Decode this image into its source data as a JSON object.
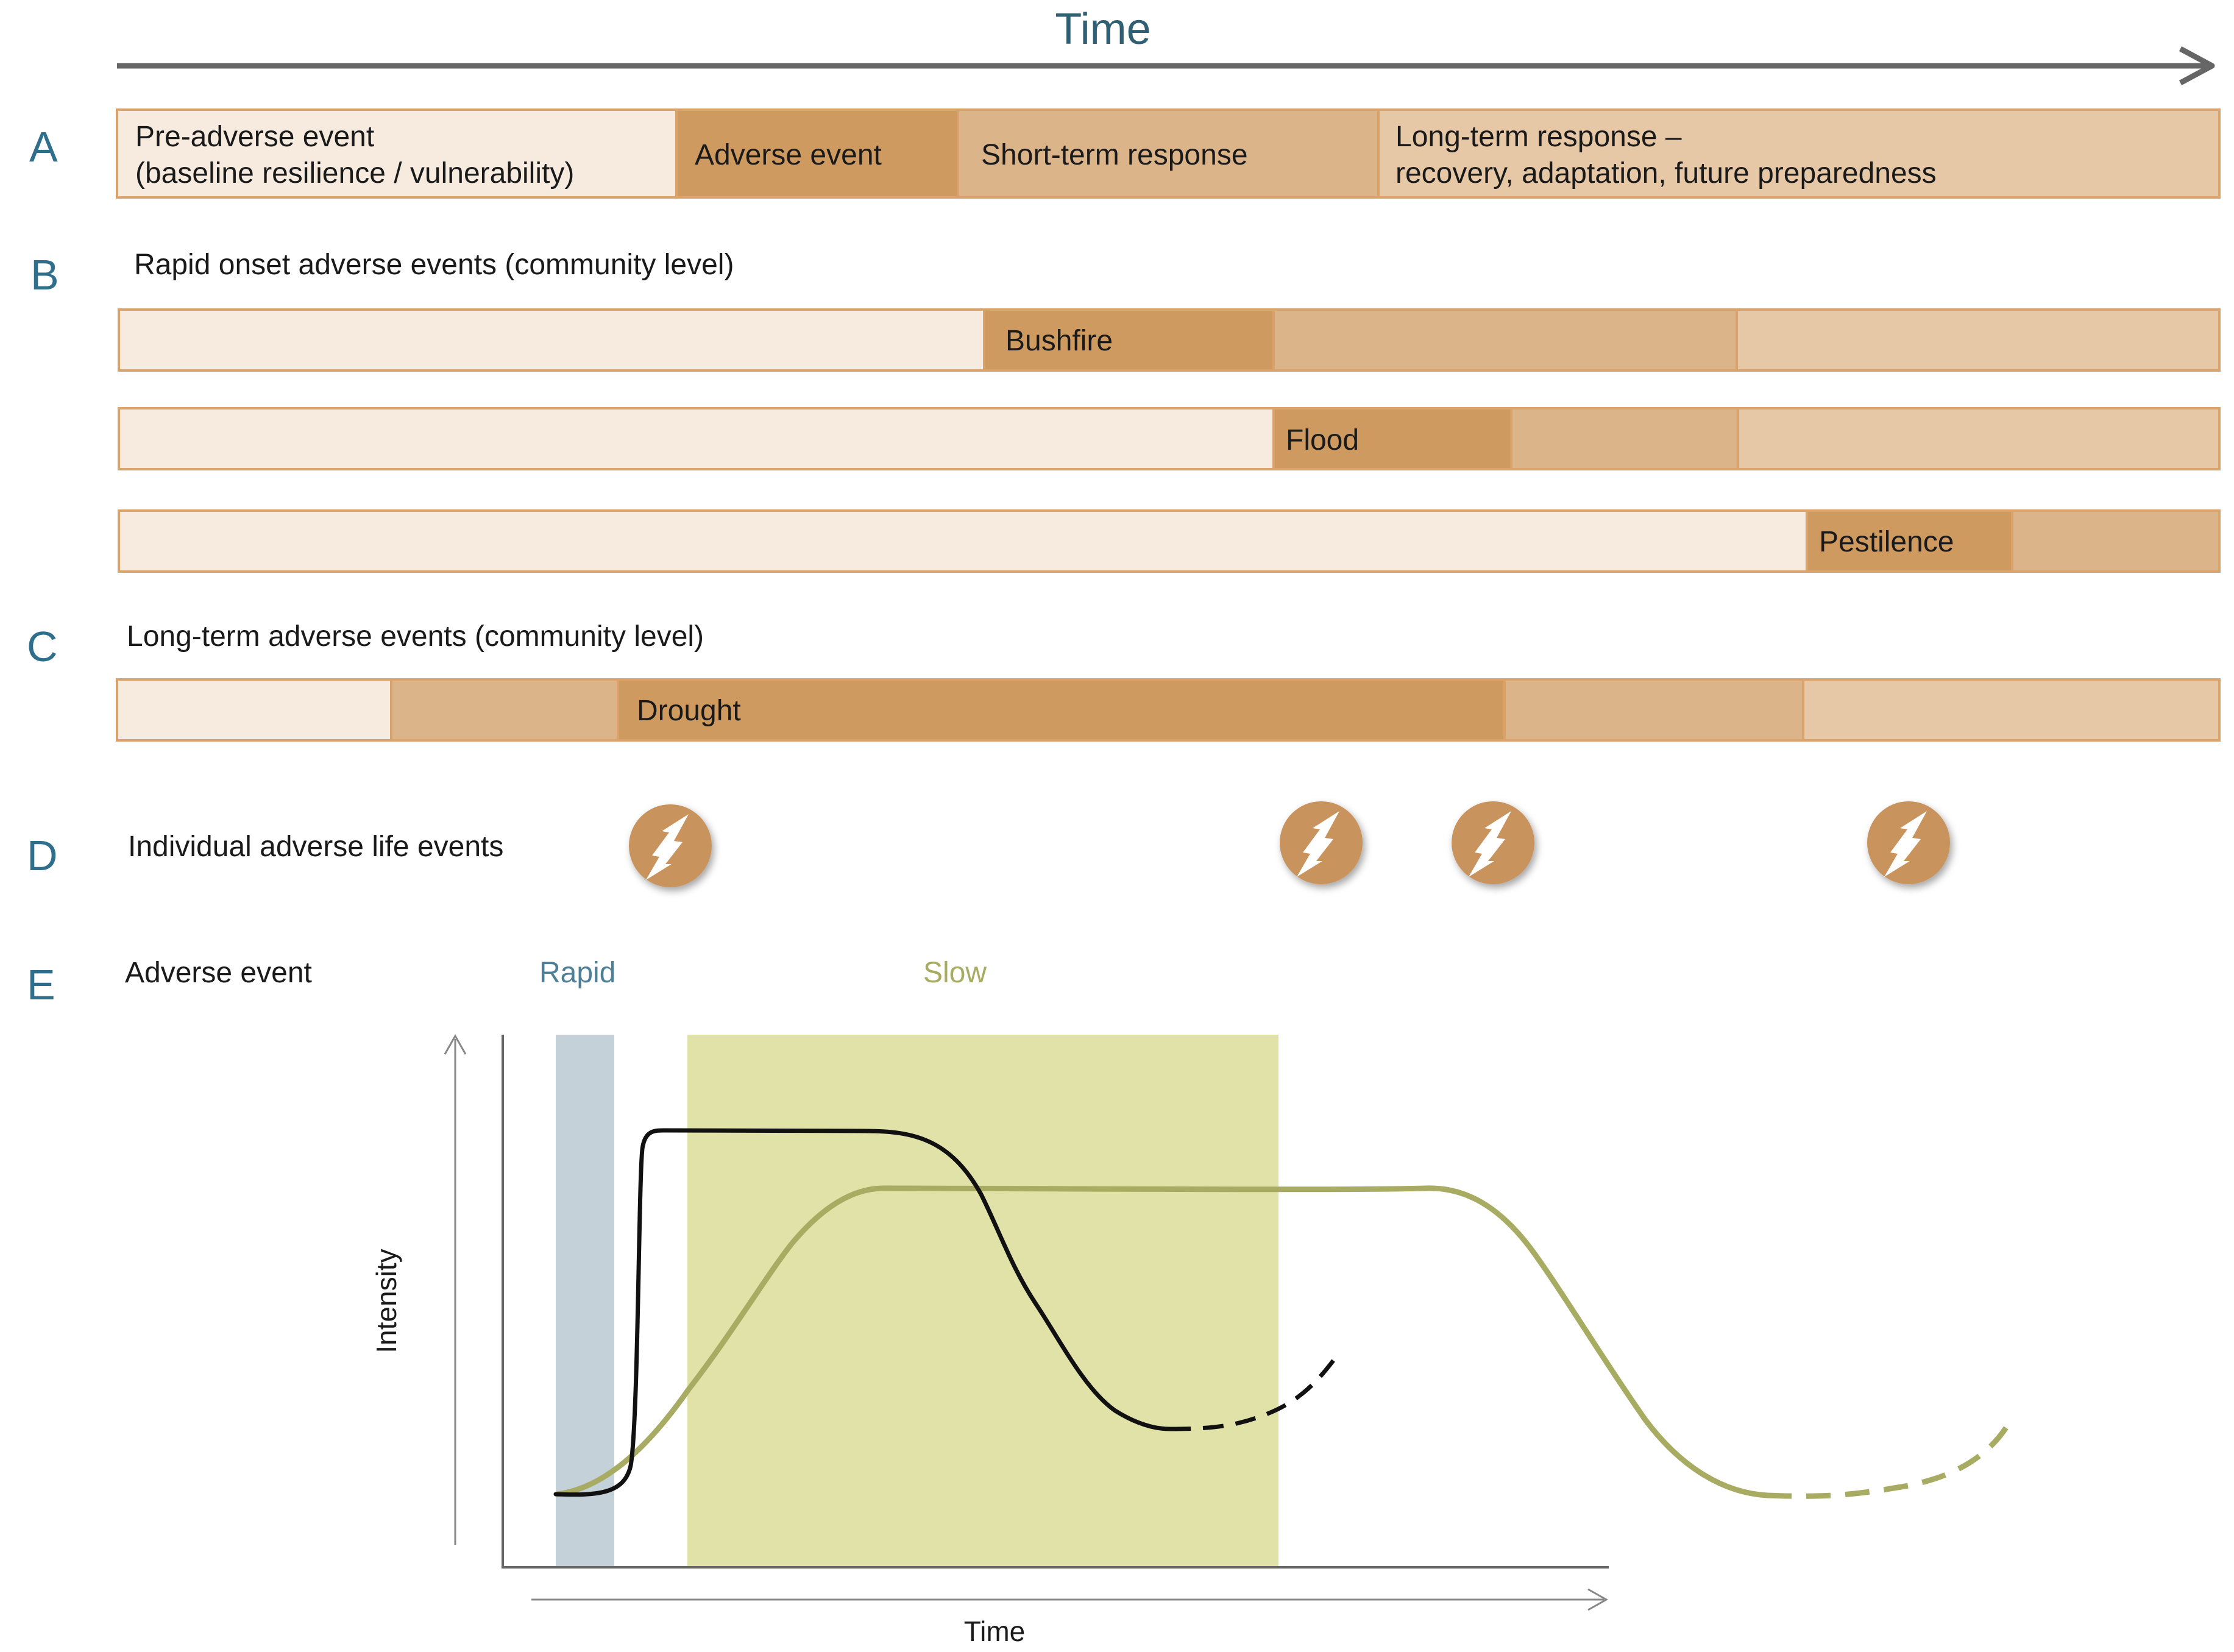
{
  "time_header": "Time",
  "colors": {
    "arrow": "#666666",
    "letter": "#2f6f8c",
    "pre": "#f6ebde",
    "adverse": "#cf9a5f",
    "short": "#dcb48a",
    "long": "#e6c8a6",
    "border": "#d9a36b",
    "rapid_band": "#c4d1d9",
    "slow_band": "#e1e2a8",
    "slow_curve": "#a8ab62",
    "rapid_curve": "#111111",
    "icon": "#c9935d"
  },
  "row_a": {
    "letter": "A",
    "segments": [
      {
        "kind": "pre",
        "lines": [
          "Pre-adverse event",
          "(baseline resilience / vulnerability)"
        ]
      },
      {
        "kind": "adverse",
        "lines": [
          "Adverse event"
        ]
      },
      {
        "kind": "short",
        "lines": [
          "Short-term response"
        ]
      },
      {
        "kind": "long",
        "lines": [
          "Long-term response –",
          "recovery,  adaptation, future preparedness"
        ]
      }
    ]
  },
  "row_b": {
    "letter": "B",
    "title": "Rapid onset adverse events (community level)",
    "bars": [
      {
        "label": "Bushfire"
      },
      {
        "label": "Flood"
      },
      {
        "label": "Pestilence"
      }
    ]
  },
  "row_c": {
    "letter": "C",
    "title": "Long-term adverse events (community level)",
    "bar": {
      "label": "Drought"
    }
  },
  "row_d": {
    "letter": "D",
    "title": "Individual adverse life events",
    "icon_count": 4
  },
  "row_e": {
    "letter": "E",
    "title": "Adverse event",
    "rapid_label": "Rapid",
    "slow_label": "Slow",
    "ylabel": "Intensity",
    "xlabel": "Time"
  }
}
